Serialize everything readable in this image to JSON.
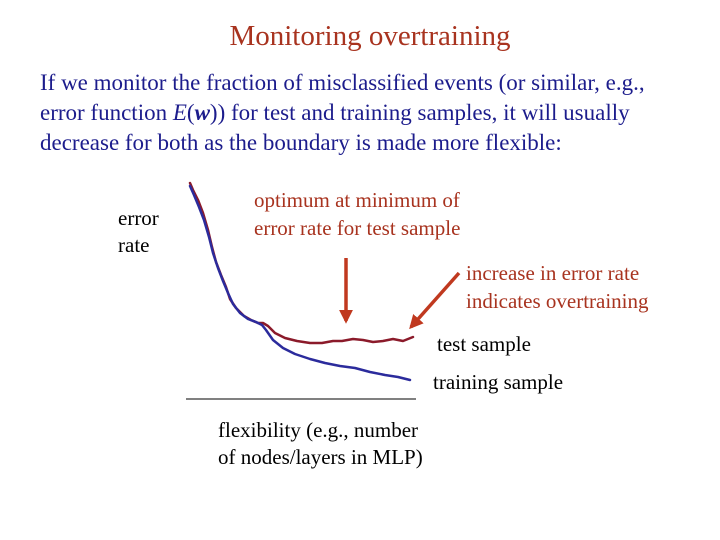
{
  "slide": {
    "title": "Monitoring overtraining",
    "intro_line1": "If we monitor the fraction of misclassified events (or similar, e.g.,",
    "intro_line2_before": "error function ",
    "intro_line2_E": "E",
    "intro_line2_open": "(",
    "intro_line2_w": "w",
    "intro_line2_after": ")) for test and training samples, it will usually",
    "intro_line3": "decrease for both as the boundary is made more flexible:"
  },
  "diagram": {
    "y_label_line1": "error",
    "y_label_line2": "rate",
    "x_label_line1": "flexibility (e.g., number",
    "x_label_line2": "of nodes/layers in MLP)",
    "optimum_line1": "optimum at minimum of",
    "optimum_line2": "error rate for test sample",
    "overtraining_line1": "increase in error rate",
    "overtraining_line2": "indicates overtraining",
    "test_label": "test sample",
    "training_label": "training sample",
    "colors": {
      "test_curve": "#8b1a2a",
      "training_curve": "#2b2b9c",
      "arrow": "#c0391f",
      "title": "#a8331f",
      "body_text": "#1c1c8c"
    }
  }
}
